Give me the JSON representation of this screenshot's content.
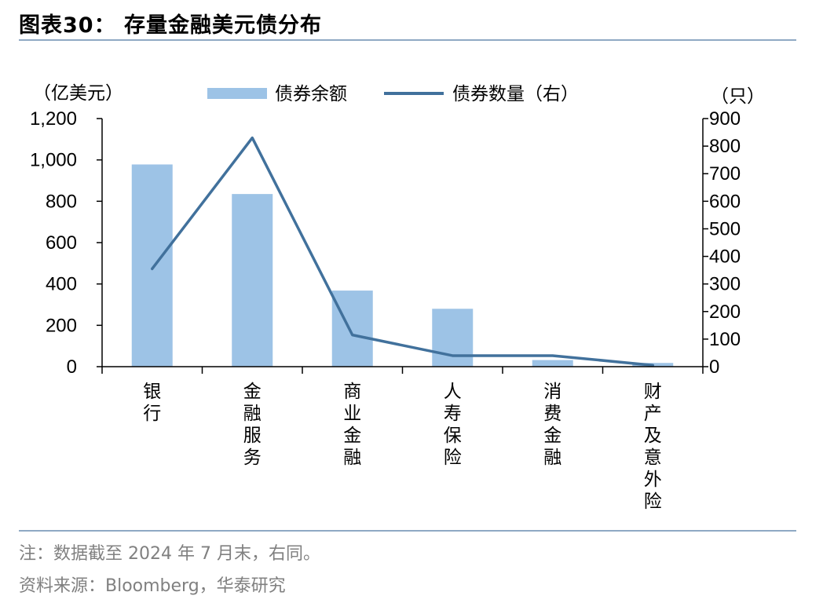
{
  "title": "图表30：  存量金融美元债分布",
  "footnote": "注：数据截至 2024 年 7 月末，右同。",
  "source": "资料来源：Bloomberg，华泰研究",
  "colors": {
    "bar": "#9DC3E6",
    "line": "#41719C",
    "rule": "#8FA9C4",
    "axis": "#000000"
  },
  "chart_data": {
    "type": "bar",
    "categories": [
      "银行",
      "金融服务",
      "商业金融",
      "人寿保险",
      "消费金融",
      "财产及意外险"
    ],
    "series": [
      {
        "name": "债券余额",
        "type": "bar",
        "axis": "left",
        "values": [
          978,
          835,
          368,
          280,
          32,
          18
        ]
      },
      {
        "name": "债券数量（右）",
        "type": "line",
        "axis": "right",
        "values": [
          355,
          830,
          115,
          40,
          40,
          5
        ]
      }
    ],
    "y_left": {
      "unit": "（亿美元）",
      "ylim": [
        0,
        1200
      ],
      "ticks": [
        "0",
        "200",
        "400",
        "600",
        "800",
        "1,000",
        "1,200"
      ]
    },
    "y_right": {
      "unit": "（只）",
      "ylim": [
        0,
        900
      ],
      "ticks": [
        "0",
        "100",
        "200",
        "300",
        "400",
        "500",
        "600",
        "700",
        "800",
        "900"
      ]
    },
    "legend": "top",
    "grid": false
  }
}
